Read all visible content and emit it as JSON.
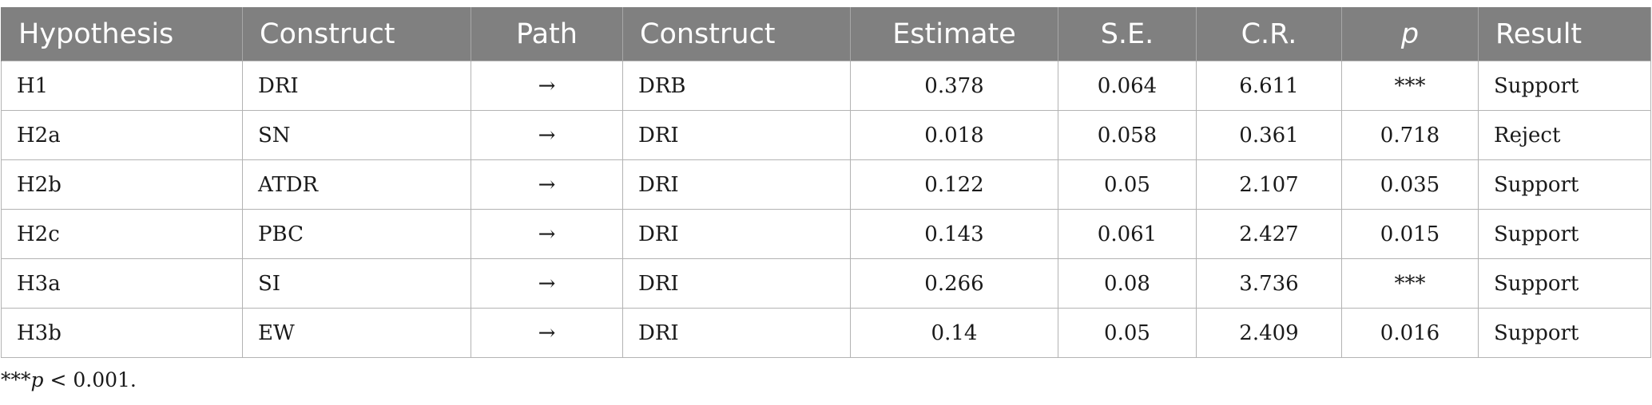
{
  "table": {
    "headers": [
      "Hypothesis",
      "Construct",
      "Path",
      "Construct",
      "Estimate",
      "S.E.",
      "C.R.",
      "p",
      "Result"
    ],
    "rows": [
      [
        "H1",
        "DRI",
        "→",
        "DRB",
        "0.378",
        "0.064",
        "6.611",
        "***",
        "Support"
      ],
      [
        "H2a",
        "SN",
        "→",
        "DRI",
        "0.018",
        "0.058",
        "0.361",
        "0.718",
        "Reject"
      ],
      [
        "H2b",
        "ATDR",
        "→",
        "DRI",
        "0.122",
        "0.05",
        "2.107",
        "0.035",
        "Support"
      ],
      [
        "H2c",
        "PBC",
        "→",
        "DRI",
        "0.143",
        "0.061",
        "2.427",
        "0.015",
        "Support"
      ],
      [
        "H3a",
        "SI",
        "→",
        "DRI",
        "0.266",
        "0.08",
        "3.736",
        "***",
        "Support"
      ],
      [
        "H3b",
        "EW",
        "→",
        "DRI",
        "0.14",
        "0.05",
        "2.409",
        "0.016",
        "Support"
      ]
    ]
  },
  "footnote": {
    "marker": "***",
    "p_symbol": "p",
    "text": " < 0.001."
  },
  "colors": {
    "header_background": "#808080",
    "header_text": "#ffffff",
    "grid_line": "#b3b3b3"
  }
}
